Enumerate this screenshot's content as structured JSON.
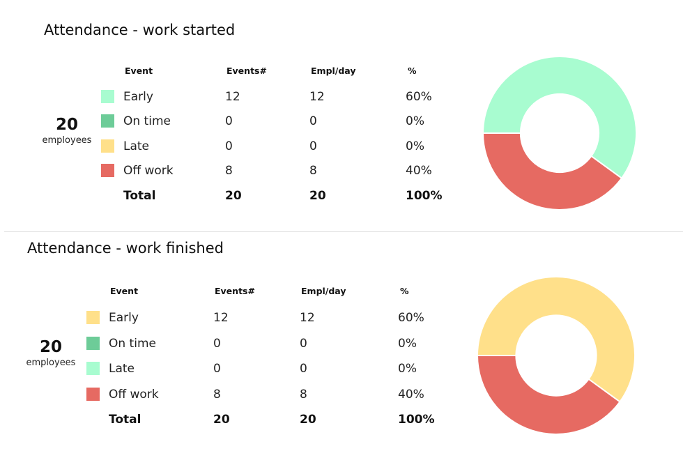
{
  "colors": {
    "early": "#a8fcd0",
    "on_time": "#6dcc98",
    "late": "#ffe08a",
    "off_work": "#e66a62"
  },
  "chart_data": [
    {
      "type": "table",
      "title": "Attendance - work started",
      "employees": {
        "count": "20",
        "label": "employees"
      },
      "columns": [
        "Event",
        "Events#",
        "Empl/day",
        "%"
      ],
      "rows": [
        {
          "event": "Early",
          "events": "12",
          "empl_day": "12",
          "pct": "60%",
          "color": "#a8fcd0"
        },
        {
          "event": "On time",
          "events": "0",
          "empl_day": "0",
          "pct": "0%",
          "color": "#6dcc98"
        },
        {
          "event": "Late",
          "events": "0",
          "empl_day": "0",
          "pct": "0%",
          "color": "#ffe08a"
        },
        {
          "event": "Off work",
          "events": "8",
          "empl_day": "8",
          "pct": "40%",
          "color": "#e66a62"
        }
      ],
      "total": {
        "label": "Total",
        "events": "20",
        "empl_day": "20",
        "pct": "100%"
      },
      "donut": {
        "type": "pie",
        "slices": [
          {
            "category": "Early",
            "value": 12,
            "color": "#a8fcd0"
          },
          {
            "category": "On time",
            "value": 0,
            "color": "#6dcc98"
          },
          {
            "category": "Late",
            "value": 0,
            "color": "#ffe08a"
          },
          {
            "category": "Off work",
            "value": 8,
            "color": "#e66a62"
          }
        ]
      }
    },
    {
      "type": "table",
      "title": "Attendance - work finished",
      "employees": {
        "count": "20",
        "label": "employees"
      },
      "columns": [
        "Event",
        "Events#",
        "Empl/day",
        "%"
      ],
      "rows": [
        {
          "event": "Early",
          "events": "12",
          "empl_day": "12",
          "pct": "60%",
          "color": "#ffe08a"
        },
        {
          "event": "On time",
          "events": "0",
          "empl_day": "0",
          "pct": "0%",
          "color": "#6dcc98"
        },
        {
          "event": "Late",
          "events": "0",
          "empl_day": "0",
          "pct": "0%",
          "color": "#a8fcd0"
        },
        {
          "event": "Off work",
          "events": "8",
          "empl_day": "8",
          "pct": "40%",
          "color": "#e66a62"
        }
      ],
      "total": {
        "label": "Total",
        "events": "20",
        "empl_day": "20",
        "pct": "100%"
      },
      "donut": {
        "type": "pie",
        "slices": [
          {
            "category": "Early",
            "value": 12,
            "color": "#ffe08a"
          },
          {
            "category": "On time",
            "value": 0,
            "color": "#6dcc98"
          },
          {
            "category": "Late",
            "value": 0,
            "color": "#a8fcd0"
          },
          {
            "category": "Off work",
            "value": 8,
            "color": "#e66a62"
          }
        ]
      }
    }
  ]
}
